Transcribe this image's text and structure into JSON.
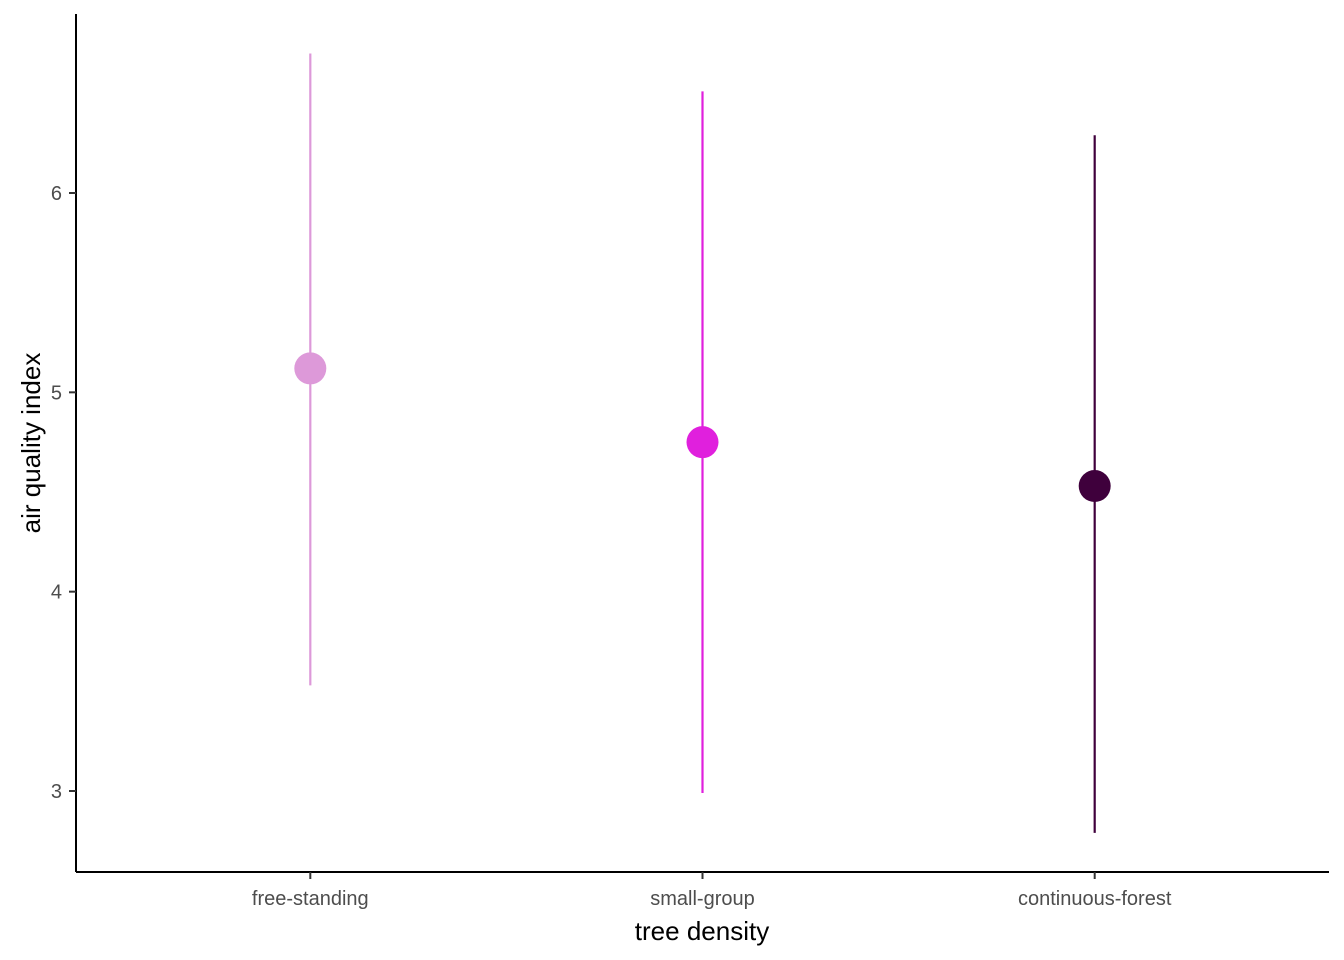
{
  "chart_data": {
    "type": "pointrange",
    "title": "",
    "xlabel": "tree density",
    "ylabel": "air quality index",
    "categories": [
      "free-standing",
      "small-group",
      "continuous-forest"
    ],
    "series": [
      {
        "values": [
          5.12,
          4.75,
          4.53
        ],
        "lower": [
          3.53,
          2.99,
          2.79
        ],
        "upper": [
          6.7,
          6.51,
          6.29
        ],
        "colors": [
          "#DD99D9",
          "#E020DD",
          "#3F003C"
        ]
      }
    ],
    "ylim": [
      2.6,
      6.9
    ],
    "yticks": [
      3,
      4,
      5,
      6
    ],
    "grid": false,
    "legend": "none"
  }
}
